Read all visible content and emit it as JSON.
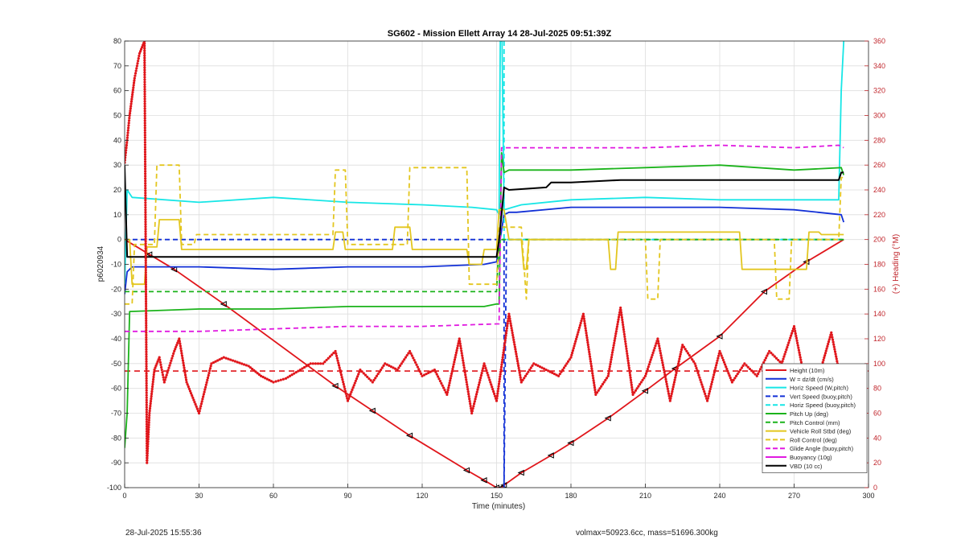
{
  "chart_data": {
    "type": "line",
    "title": "SG602 - Mission Ellett Array 14 28-Jul-2025 09:51:39Z",
    "xlabel": "Time (minutes)",
    "ylabel": "p6020934",
    "y2label": "(+) Heading (°M)",
    "xlim": [
      0,
      300
    ],
    "ylim": [
      -100,
      80
    ],
    "y2lim": [
      0,
      360
    ],
    "xticks": [
      0,
      30,
      60,
      90,
      120,
      150,
      180,
      210,
      240,
      270,
      300
    ],
    "yticks": [
      -100,
      -90,
      -80,
      -70,
      -60,
      -50,
      -40,
      -30,
      -20,
      -10,
      0,
      10,
      20,
      30,
      40,
      50,
      60,
      70,
      80
    ],
    "y2ticks": [
      0,
      20,
      40,
      60,
      80,
      100,
      120,
      140,
      160,
      180,
      200,
      220,
      240,
      260,
      280,
      300,
      320,
      340,
      360
    ],
    "grid": true,
    "legend_position": "bottom-right",
    "colors": {
      "red": "#e0161b",
      "blue": "#1230d6",
      "cyan": "#17e6e6",
      "green": "#1bb31b",
      "yellow": "#e3c61f",
      "magenta": "#e01ae0",
      "black": "#000000",
      "right_axis": "#c1272d"
    },
    "series": [
      {
        "name": "Height (10m)",
        "color": "red",
        "style": "solid",
        "axis": "left",
        "x": [
          0,
          10,
          20,
          40,
          85,
          100,
          115,
          138,
          145,
          150,
          152,
          153,
          160,
          172,
          180,
          195,
          210,
          222,
          240,
          258,
          275,
          290
        ],
        "y": [
          0,
          -6,
          -12,
          -26,
          -59,
          -69,
          -79,
          -93,
          -97,
          -100,
          -100,
          -99,
          -94,
          -87,
          -82,
          -72,
          -61,
          -52,
          -39,
          -21,
          -9,
          0
        ]
      },
      {
        "name": "W = dz/dt (cm/s)",
        "color": "blue",
        "style": "solid",
        "axis": "left",
        "x": [
          0,
          1,
          3,
          30,
          60,
          90,
          120,
          145,
          150,
          153,
          155,
          158,
          180,
          210,
          240,
          270,
          289,
          290
        ],
        "y": [
          -22,
          -13,
          -11,
          -11,
          -12,
          -11,
          -11,
          -10,
          -9,
          10,
          11,
          11,
          13,
          13,
          13,
          12,
          10,
          7
        ]
      },
      {
        "name": "Horiz Speed (W,pitch)",
        "color": "cyan",
        "style": "solid",
        "axis": "left",
        "x": [
          0,
          1,
          3,
          30,
          60,
          90,
          120,
          140,
          150,
          151,
          151.5,
          152.2,
          153,
          160,
          180,
          210,
          240,
          270,
          288,
          289,
          290
        ],
        "y": [
          -18,
          20,
          17,
          15,
          17,
          15,
          14,
          13,
          12,
          10,
          80,
          80,
          12,
          14,
          16,
          17,
          16,
          16,
          16,
          60,
          80
        ]
      },
      {
        "name": "Vert Speed (buoy,pitch)",
        "color": "blue",
        "style": "dashed",
        "axis": "left",
        "x": [
          0,
          152,
          153,
          153,
          154,
          290
        ],
        "y": [
          0,
          0,
          0,
          -100,
          0,
          0
        ]
      },
      {
        "name": "Horiz Speed (buoy,pitch)",
        "color": "cyan",
        "style": "dashed",
        "axis": "left",
        "x": [
          153,
          153,
          154,
          290
        ],
        "y": [
          80,
          0,
          0,
          0
        ]
      },
      {
        "name": "Pitch Up (deg)",
        "color": "green",
        "style": "solid",
        "axis": "left",
        "x": [
          0,
          1,
          2,
          30,
          60,
          90,
          120,
          145,
          150,
          151,
          152,
          153,
          155,
          180,
          210,
          240,
          270,
          289,
          290
        ],
        "y": [
          -84,
          -70,
          -29,
          -28,
          -28,
          -27,
          -27,
          -27,
          -26,
          -26,
          35,
          27,
          28,
          28,
          29,
          30,
          28,
          29,
          26
        ]
      },
      {
        "name": "Pitch Control (mm)",
        "color": "green",
        "style": "dashed",
        "axis": "left",
        "x": [
          0,
          150,
          151,
          290
        ],
        "y": [
          -21,
          -21,
          0,
          0
        ]
      },
      {
        "name": "Vehicle Roll Stbd (deg)",
        "color": "yellow",
        "style": "solid",
        "axis": "left",
        "x": [
          0,
          2,
          3,
          8,
          9,
          13,
          14,
          22,
          23,
          28,
          29,
          84,
          85,
          88,
          89,
          108,
          109,
          115,
          116,
          138,
          139,
          144,
          145,
          150,
          151,
          153,
          155,
          160,
          161,
          162,
          163,
          195,
          196,
          198,
          199,
          248,
          249,
          275,
          276,
          280,
          281,
          290
        ],
        "y": [
          0,
          0,
          -18,
          -18,
          -3,
          -3,
          8,
          8,
          -4,
          -4,
          -4,
          -4,
          3,
          3,
          -4,
          -4,
          5,
          5,
          -4,
          -4,
          -10,
          -10,
          -4,
          -4,
          12,
          12,
          0,
          0,
          -12,
          -12,
          0,
          0,
          -12,
          -12,
          3,
          3,
          -12,
          -12,
          3,
          3,
          2,
          2
        ]
      },
      {
        "name": "Roll Control (deg)",
        "color": "yellow",
        "style": "dashed",
        "axis": "left",
        "x": [
          0,
          3,
          4,
          12,
          13,
          22,
          23,
          28,
          29,
          84,
          85,
          89,
          90,
          114,
          115,
          138,
          139,
          150,
          151,
          155,
          160,
          162,
          163,
          210,
          211,
          215,
          216,
          262,
          263,
          268,
          269,
          288,
          289,
          290
        ],
        "y": [
          -26,
          -26,
          -2,
          -2,
          30,
          30,
          -2,
          -2,
          2,
          2,
          28,
          28,
          -2,
          -2,
          29,
          29,
          -18,
          -18,
          5,
          5,
          5,
          -24,
          0,
          0,
          -24,
          -24,
          0,
          0,
          -24,
          -24,
          0,
          0,
          25,
          25
        ]
      },
      {
        "name": "Glide Angle (buoy,pitch)",
        "color": "magenta",
        "style": "dashed",
        "axis": "left",
        "x": [
          0,
          30,
          60,
          90,
          120,
          150,
          151,
          152,
          180,
          210,
          240,
          270,
          288,
          290
        ],
        "y": [
          -37,
          -37,
          -36,
          -35,
          -35,
          -34,
          -34,
          37,
          37,
          37,
          38,
          37,
          38,
          37
        ]
      },
      {
        "name": "Buoyancy (10g)",
        "color": "magenta",
        "style": "solid",
        "axis": "left",
        "x": [],
        "y": []
      },
      {
        "name": "VBD (10 cc)",
        "color": "black",
        "style": "solid",
        "axis": "left",
        "x": [
          0,
          1,
          2,
          150,
          151,
          152,
          153,
          155,
          170,
          172,
          180,
          200,
          288,
          289,
          290
        ],
        "y": [
          30,
          -7,
          -7,
          -7,
          0,
          10,
          21,
          20,
          21,
          23,
          23,
          24,
          24,
          27,
          27
        ]
      },
      {
        "name": "Heading",
        "color": "red",
        "style": "dotted",
        "axis": "right",
        "x": [
          0,
          1,
          2,
          4,
          6,
          8,
          9,
          10,
          12,
          14,
          16,
          20,
          22,
          25,
          30,
          35,
          40,
          50,
          55,
          60,
          65,
          75,
          80,
          85,
          90,
          95,
          100,
          105,
          110,
          115,
          120,
          125,
          130,
          135,
          140,
          145,
          150,
          155,
          160,
          165,
          170,
          175,
          180,
          185,
          190,
          195,
          200,
          205,
          210,
          215,
          220,
          225,
          230,
          235,
          240,
          245,
          250,
          255,
          260,
          265,
          270,
          275,
          280,
          285,
          290
        ],
        "y": [
          262,
          280,
          300,
          330,
          350,
          360,
          20,
          60,
          95,
          105,
          85,
          110,
          120,
          85,
          60,
          100,
          105,
          98,
          90,
          85,
          88,
          100,
          100,
          110,
          70,
          95,
          85,
          100,
          95,
          110,
          90,
          95,
          75,
          120,
          60,
          100,
          70,
          140,
          85,
          100,
          95,
          90,
          105,
          140,
          75,
          90,
          145,
          75,
          90,
          120,
          70,
          115,
          100,
          70,
          110,
          85,
          100,
          90,
          110,
          100,
          130,
          80,
          90,
          125,
          75
        ]
      }
    ],
    "legend": [
      {
        "label": "Height (10m)",
        "color": "red",
        "style": "solid"
      },
      {
        "label": "W = dz/dt (cm/s)",
        "color": "blue",
        "style": "solid"
      },
      {
        "label": "Horiz Speed (W,pitch)",
        "color": "cyan",
        "style": "solid"
      },
      {
        "label": "Vert Speed (buoy,pitch)",
        "color": "blue",
        "style": "dashed"
      },
      {
        "label": "Horiz Speed (buoy,pitch)",
        "color": "cyan",
        "style": "dashed"
      },
      {
        "label": "Pitch Up (deg)",
        "color": "green",
        "style": "solid"
      },
      {
        "label": "Pitch Control (mm)",
        "color": "green",
        "style": "dashed"
      },
      {
        "label": "Vehicle Roll Stbd (deg)",
        "color": "yellow",
        "style": "solid"
      },
      {
        "label": "Roll Control (deg)",
        "color": "yellow",
        "style": "dashed"
      },
      {
        "label": "Glide Angle (buoy,pitch)",
        "color": "magenta",
        "style": "dashed"
      },
      {
        "label": "Buoyancy (10g)",
        "color": "magenta",
        "style": "solid"
      },
      {
        "label": "VBD (10 cc)",
        "color": "black",
        "style": "solid"
      }
    ],
    "annotations": [
      {
        "type": "hline",
        "y": -53,
        "color": "red",
        "style": "dashed"
      }
    ]
  },
  "footer": {
    "left": "28-Jul-2025 15:55:36",
    "right": "volmax=50923.6cc, mass=51696.300kg"
  }
}
